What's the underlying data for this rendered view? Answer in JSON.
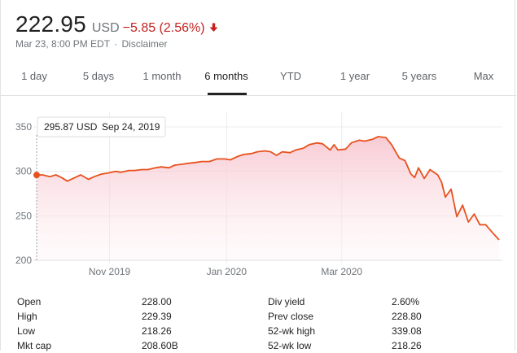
{
  "header": {
    "price": "222.95",
    "currency": "USD",
    "change": "−5.85 (2.56%)",
    "change_color": "#c5221f",
    "direction_icon": "arrow-down-icon",
    "timestamp": "Mar 23, 8:00 PM EDT",
    "separator": "·",
    "disclaimer": "Disclaimer"
  },
  "tabs": [
    {
      "label": "1 day"
    },
    {
      "label": "5 days"
    },
    {
      "label": "1 month"
    },
    {
      "label": "6 months",
      "active": true
    },
    {
      "label": "YTD"
    },
    {
      "label": "1 year"
    },
    {
      "label": "5 years"
    },
    {
      "label": "Max"
    }
  ],
  "tooltip": {
    "price": "295.87 USD",
    "date": "Sep 24, 2019"
  },
  "chart_data": {
    "type": "area",
    "ylim": [
      200,
      350
    ],
    "yticks": [
      "350",
      "300",
      "250",
      "200"
    ],
    "ytick_values": [
      350,
      300,
      250,
      200
    ],
    "xticks": [
      {
        "label": "Nov 2019",
        "date": "2019-11-01"
      },
      {
        "label": "Jan 2020",
        "date": "2020-01-01"
      },
      {
        "label": "Mar 2020",
        "date": "2020-03-01"
      }
    ],
    "line_color": "#e8511d",
    "fill_color": "#f7c5cf",
    "grid": true,
    "series": [
      {
        "values": [
          [
            "2019-09-24",
            295.87
          ],
          [
            "2019-09-27",
            296
          ],
          [
            "2019-10-01",
            294
          ],
          [
            "2019-10-04",
            296
          ],
          [
            "2019-10-07",
            293
          ],
          [
            "2019-10-10",
            289
          ],
          [
            "2019-10-14",
            293
          ],
          [
            "2019-10-17",
            296
          ],
          [
            "2019-10-21",
            291
          ],
          [
            "2019-10-24",
            294
          ],
          [
            "2019-10-28",
            297
          ],
          [
            "2019-10-31",
            298
          ],
          [
            "2019-11-04",
            300
          ],
          [
            "2019-11-07",
            299
          ],
          [
            "2019-11-11",
            301
          ],
          [
            "2019-11-14",
            301
          ],
          [
            "2019-11-18",
            302
          ],
          [
            "2019-11-21",
            302
          ],
          [
            "2019-11-25",
            304
          ],
          [
            "2019-11-28",
            305
          ],
          [
            "2019-12-02",
            304
          ],
          [
            "2019-12-05",
            307
          ],
          [
            "2019-12-09",
            308
          ],
          [
            "2019-12-12",
            309
          ],
          [
            "2019-12-16",
            310
          ],
          [
            "2019-12-19",
            311
          ],
          [
            "2019-12-23",
            311
          ],
          [
            "2019-12-27",
            314
          ],
          [
            "2019-12-31",
            314
          ],
          [
            "2020-01-03",
            313
          ],
          [
            "2020-01-07",
            317
          ],
          [
            "2020-01-10",
            319
          ],
          [
            "2020-01-14",
            320
          ],
          [
            "2020-01-17",
            322
          ],
          [
            "2020-01-21",
            323
          ],
          [
            "2020-01-24",
            322
          ],
          [
            "2020-01-27",
            318
          ],
          [
            "2020-01-30",
            322
          ],
          [
            "2020-02-03",
            321
          ],
          [
            "2020-02-06",
            324
          ],
          [
            "2020-02-10",
            326
          ],
          [
            "2020-02-13",
            330
          ],
          [
            "2020-02-17",
            332
          ],
          [
            "2020-02-20",
            331
          ],
          [
            "2020-02-24",
            324
          ],
          [
            "2020-02-26",
            330
          ],
          [
            "2020-02-28",
            324
          ],
          [
            "2020-03-03",
            325
          ],
          [
            "2020-03-06",
            332
          ],
          [
            "2020-03-10",
            335
          ],
          [
            "2020-03-13",
            334
          ],
          [
            "2020-03-17",
            336
          ],
          [
            "2020-03-20",
            339
          ],
          [
            "2020-03-24",
            338
          ],
          [
            "2020-03-27",
            330
          ],
          [
            "2020-03-31",
            315
          ],
          [
            "2020-04-03",
            312
          ],
          [
            "2020-04-06",
            297
          ],
          [
            "2020-04-08",
            293
          ],
          [
            "2020-04-10",
            304
          ],
          [
            "2020-04-13",
            292
          ],
          [
            "2020-04-16",
            302
          ],
          [
            "2020-04-20",
            296
          ],
          [
            "2020-04-22",
            288
          ],
          [
            "2020-04-24",
            271
          ],
          [
            "2020-04-27",
            280
          ],
          [
            "2020-04-30",
            249
          ],
          [
            "2020-05-03",
            262
          ],
          [
            "2020-05-06",
            243
          ],
          [
            "2020-05-09",
            252
          ],
          [
            "2020-05-12",
            240
          ],
          [
            "2020-05-15",
            240
          ],
          [
            "2020-05-19",
            230
          ],
          [
            "2020-05-22",
            222.95
          ]
        ]
      }
    ]
  },
  "stats": {
    "left": [
      {
        "label": "Open",
        "value": "228.00"
      },
      {
        "label": "High",
        "value": "229.39"
      },
      {
        "label": "Low",
        "value": "218.26"
      },
      {
        "label": "Mkt cap",
        "value": "208.60B"
      }
    ],
    "right": [
      {
        "label": "Div yield",
        "value": "2.60%"
      },
      {
        "label": "Prev close",
        "value": "228.80"
      },
      {
        "label": "52-wk high",
        "value": "339.08"
      },
      {
        "label": "52-wk low",
        "value": "218.26"
      }
    ]
  }
}
